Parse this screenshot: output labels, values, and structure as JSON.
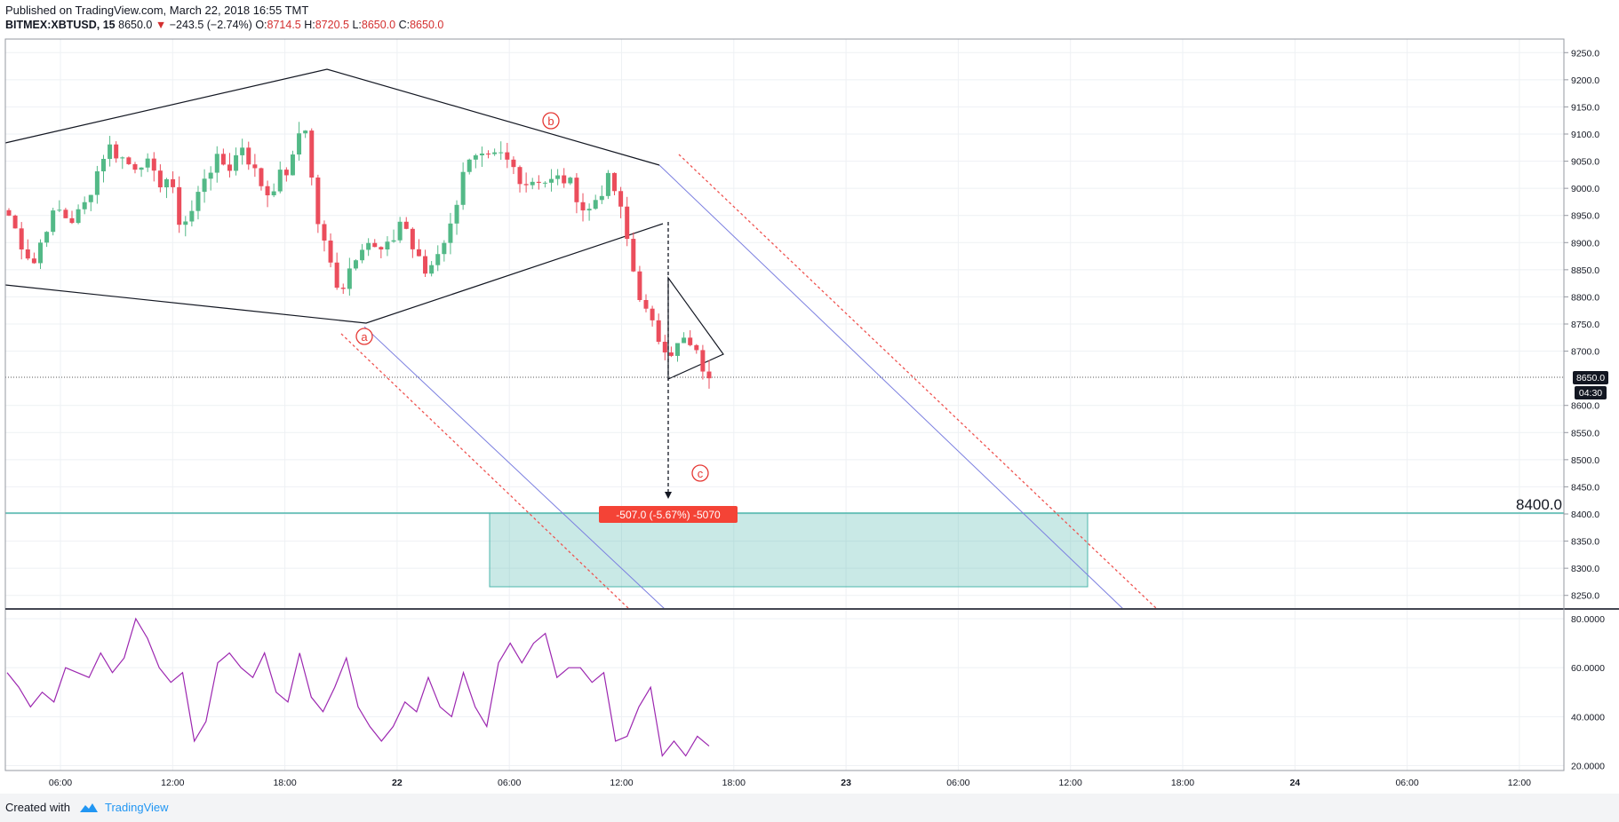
{
  "header": {
    "published": "Published on TradingView.com, March 22, 2018 16:55 TMT",
    "symbol": "BITMEX:XBTUSD, 15",
    "last": "8650.0",
    "change_arrow": "▼",
    "change": "−243.5 (−2.74%)",
    "open_label": "O:",
    "open": "8714.5",
    "high_label": "H:",
    "high": "8720.5",
    "low_label": "L:",
    "low": "8650.0",
    "close_label": "C:",
    "close": "8650.0"
  },
  "footer": {
    "created_with": "Created with",
    "brand": "TradingView"
  },
  "colors": {
    "up": "#53b987",
    "down": "#eb4d5c",
    "rsi": "#9c27b0",
    "accent_red": "#e53935",
    "teal": "#4db6ac",
    "zone": "rgba(77,182,172,0.30)",
    "trendline": "#131722",
    "channel_blue": "#7b7fe0",
    "channel_red": "#ef5350"
  },
  "chart_data": [
    {
      "type": "candlestick",
      "symbol": "BITMEX:XBTUSD",
      "interval": "15",
      "x_ticks": [
        "06:00",
        "12:00",
        "18:00",
        "22",
        "06:00",
        "12:00",
        "18:00",
        "23",
        "06:00",
        "12:00",
        "18:00",
        "24",
        "06:00",
        "12:00"
      ],
      "y_ticks": [
        "9250.0",
        "9200.0",
        "9150.0",
        "9100.0",
        "9050.0",
        "9000.0",
        "8950.0",
        "8900.0",
        "8850.0",
        "8800.0",
        "8750.0",
        "8700.0",
        "8600.0",
        "8550.0",
        "8500.0",
        "8450.0",
        "8400.0",
        "8350.0",
        "8300.0",
        "8250.0"
      ],
      "ylim": [
        8225,
        9275
      ],
      "last_price_label": "8650.0",
      "countdown": "04:30",
      "horizontal_level_label": "8400.0",
      "wave_labels": [
        "a",
        "b",
        "c"
      ],
      "measure_label": "-507.0 (-5.67%) -5070",
      "close_anchors": [
        8950,
        8900,
        8860,
        8930,
        8960,
        8940,
        8960,
        9020,
        9080,
        9060,
        9040,
        9055,
        9010,
        9020,
        8930,
        8960,
        9030,
        9050,
        9040,
        9080,
        9030,
        8990,
        9020,
        9040,
        9140,
        8950,
        8870,
        8810,
        8870,
        8910,
        8880,
        8890,
        8950,
        8880,
        8840,
        8890,
        8930,
        9040,
        9050,
        9050,
        9060,
        9040,
        9010,
        9020,
        9010,
        9020,
        9000,
        8950,
        8990,
        9020,
        8940,
        8830,
        8760,
        8720,
        8700,
        8720,
        8690,
        8650
      ]
    },
    {
      "type": "line",
      "name": "RSI",
      "y_ticks": [
        "80.0000",
        "60.0000",
        "40.0000",
        "20.0000"
      ],
      "ylim": [
        18,
        84
      ],
      "values": [
        58,
        52,
        44,
        50,
        46,
        60,
        58,
        56,
        66,
        58,
        64,
        80,
        72,
        60,
        54,
        58,
        30,
        38,
        62,
        66,
        60,
        56,
        66,
        50,
        46,
        66,
        48,
        42,
        52,
        64,
        44,
        36,
        30,
        36,
        46,
        42,
        56,
        44,
        40,
        58,
        44,
        36,
        62,
        70,
        62,
        70,
        74,
        56,
        60,
        60,
        54,
        58,
        30,
        32,
        44,
        52,
        24,
        30,
        24,
        32,
        28
      ]
    }
  ]
}
